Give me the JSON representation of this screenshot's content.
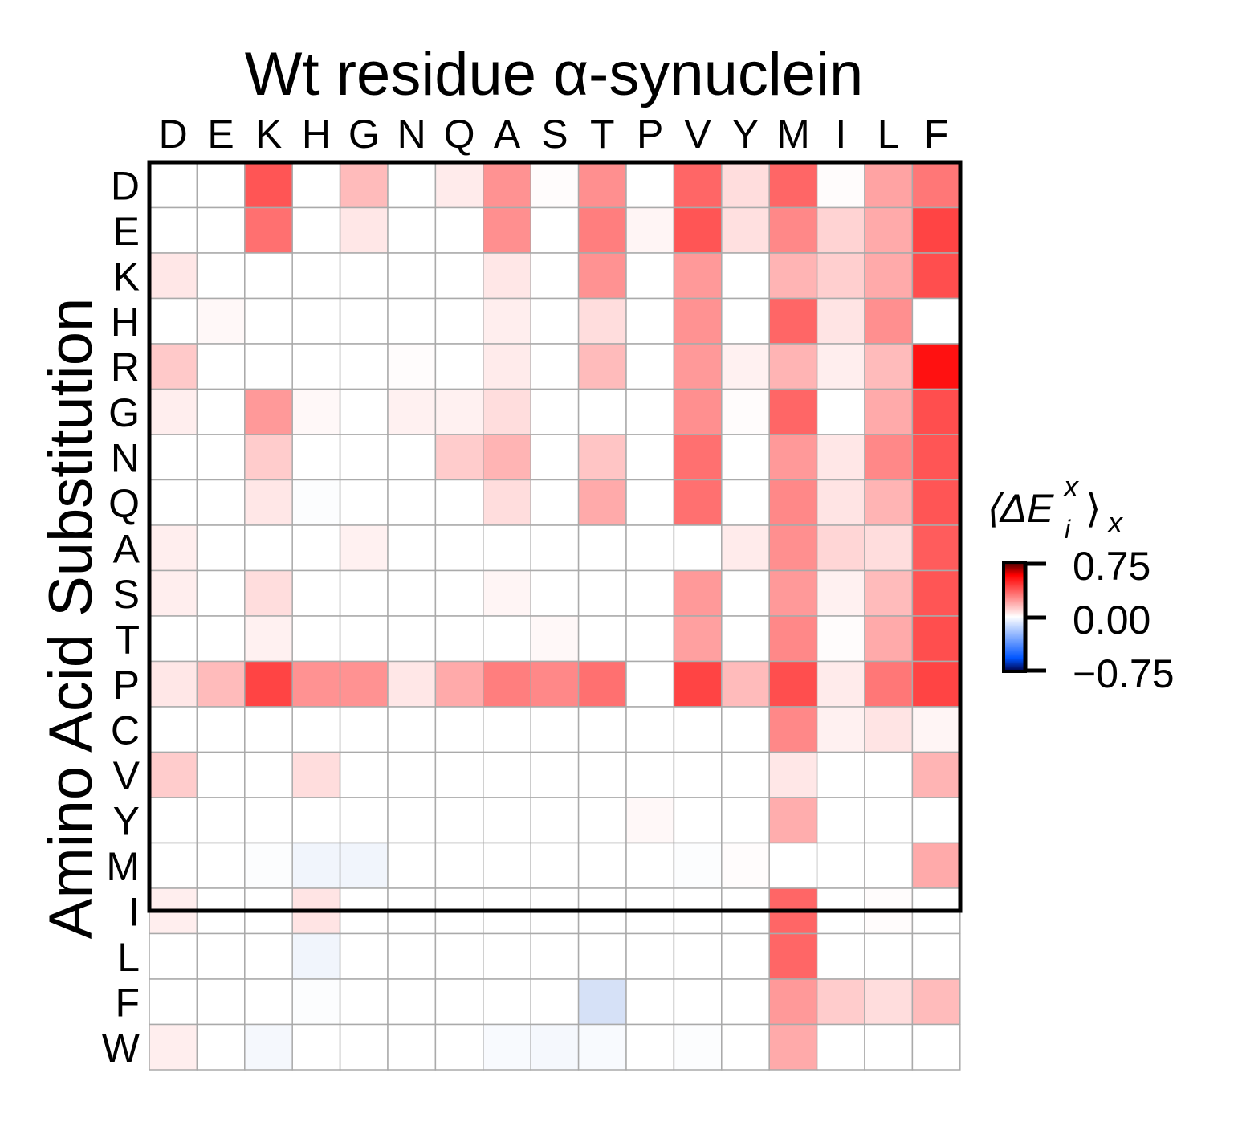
{
  "chart_data": {
    "type": "heatmap",
    "title": "Wt residue α-synuclein",
    "xlabel": "",
    "ylabel": "Amino Acid Substitution",
    "x_categories": [
      "D",
      "E",
      "K",
      "H",
      "G",
      "N",
      "Q",
      "A",
      "S",
      "T",
      "P",
      "V",
      "Y",
      "M",
      "I",
      "L",
      "F"
    ],
    "y_categories": [
      "D",
      "E",
      "K",
      "H",
      "R",
      "G",
      "N",
      "Q",
      "A",
      "S",
      "T",
      "P",
      "C",
      "V",
      "Y",
      "M",
      "I",
      "L",
      "F",
      "W"
    ],
    "values": [
      [
        0,
        0,
        0.5,
        0,
        0.2,
        0,
        0.06,
        0.32,
        0.01,
        0.33,
        0,
        0.45,
        0.1,
        0.45,
        0.01,
        0.27,
        0.4
      ],
      [
        0,
        0,
        0.42,
        0,
        0.07,
        0,
        0,
        0.33,
        0,
        0.38,
        0.03,
        0.5,
        0.09,
        0.35,
        0.13,
        0.25,
        0.55
      ],
      [
        0.07,
        0,
        0,
        0,
        0,
        0,
        0,
        0.07,
        0,
        0.32,
        0,
        0.3,
        0,
        0.22,
        0.14,
        0.25,
        0.52
      ],
      [
        0,
        0.02,
        0,
        0,
        0,
        0,
        0,
        0.05,
        0,
        0.1,
        0,
        0.32,
        0,
        0.45,
        0.08,
        0.33,
        0
      ],
      [
        0.16,
        0,
        0,
        0,
        0,
        0.01,
        0,
        0.06,
        0,
        0.2,
        0,
        0.3,
        0.04,
        0.22,
        0.05,
        0.2,
        0.7
      ],
      [
        0.05,
        0,
        0.3,
        0.02,
        0,
        0.04,
        0.04,
        0.1,
        0,
        0,
        0,
        0.33,
        0.01,
        0.45,
        0,
        0.25,
        0.52
      ],
      [
        0,
        0,
        0.15,
        0,
        0,
        0,
        0.15,
        0.22,
        0,
        0.17,
        0,
        0.42,
        0,
        0.3,
        0.07,
        0.35,
        0.5
      ],
      [
        0,
        0,
        0.07,
        -0.01,
        0,
        0,
        0,
        0.1,
        0,
        0.25,
        0,
        0.42,
        0,
        0.35,
        0.08,
        0.22,
        0.5
      ],
      [
        0.05,
        0,
        0,
        0,
        0.04,
        0,
        0,
        0,
        0,
        0,
        0,
        0,
        0.06,
        0.33,
        0.12,
        0.1,
        0.48
      ],
      [
        0.05,
        0,
        0.1,
        0,
        0,
        0,
        0,
        0.03,
        0,
        0,
        0,
        0.3,
        0,
        0.3,
        0.04,
        0.2,
        0.5
      ],
      [
        0,
        0,
        0.04,
        0,
        0,
        0,
        0,
        0,
        0.02,
        0,
        0,
        0.28,
        0,
        0.35,
        0.01,
        0.25,
        0.52
      ],
      [
        0.07,
        0.2,
        0.55,
        0.32,
        0.32,
        0.07,
        0.25,
        0.38,
        0.35,
        0.42,
        0,
        0.55,
        0.2,
        0.52,
        0.06,
        0.4,
        0.55
      ],
      [
        0,
        0,
        0,
        0,
        0,
        0,
        0,
        0,
        0,
        0,
        0,
        0,
        0,
        0.35,
        0.04,
        0.08,
        0.03
      ],
      [
        0.15,
        0,
        0,
        0.1,
        0,
        0,
        0,
        0,
        0,
        0,
        0,
        0,
        0,
        0.07,
        0,
        0,
        0.22
      ],
      [
        0,
        0,
        0,
        0,
        0,
        0,
        0,
        0,
        0,
        0,
        0.02,
        0,
        0,
        0.24,
        0,
        0,
        0
      ],
      [
        0,
        0,
        -0.01,
        -0.04,
        -0.04,
        0,
        0,
        0,
        0,
        0,
        0,
        -0.01,
        0.01,
        0,
        0,
        0,
        0.25
      ],
      [
        0.05,
        0,
        0,
        0.08,
        0,
        0,
        0,
        0,
        0,
        0,
        0,
        0,
        0,
        0.45,
        0,
        0.01,
        0
      ],
      [
        0,
        0,
        0,
        -0.04,
        0,
        0,
        0,
        0,
        0,
        0,
        0,
        0,
        0,
        0.45,
        0,
        0,
        0
      ],
      [
        0,
        0,
        0,
        -0.01,
        0,
        0,
        0,
        0,
        0,
        -0.12,
        0,
        0,
        0,
        0.3,
        0.15,
        0.1,
        0.2
      ],
      [
        0.05,
        0,
        -0.03,
        0,
        0,
        0,
        0,
        -0.02,
        -0.03,
        -0.02,
        0,
        -0.01,
        0,
        0.25,
        0,
        0,
        0
      ]
    ],
    "colorbar": {
      "vmin": -0.75,
      "vmax": 0.75,
      "ticks": [
        "0.75",
        "0.00",
        "−0.75"
      ],
      "colors": {
        "neg": "#0044cc",
        "mid": "#ffffff",
        "pos": "#ff0000"
      }
    },
    "grid": true
  }
}
